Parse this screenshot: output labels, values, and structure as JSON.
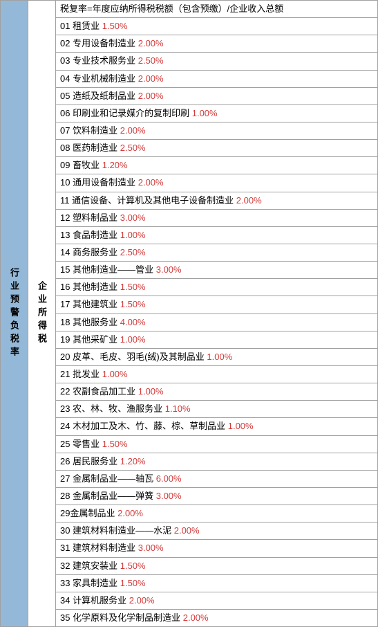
{
  "left_label": "行业预警负税率",
  "mid_label": "企业所得税",
  "header_row": "税复率=年度应纳所得税税额（包含预缴）/企业收入总额",
  "rows": [
    {
      "num": "01",
      "name": "租赁业",
      "rate": "1.50%"
    },
    {
      "num": "02",
      "name": "专用设备制造业",
      "rate": "2.00%"
    },
    {
      "num": "03",
      "name": "专业技术服务业",
      "rate": "2.50%"
    },
    {
      "num": "04",
      "name": "专业机械制造业",
      "rate": "2.00%"
    },
    {
      "num": "05",
      "name": "造纸及纸制品业",
      "rate": "2.00%"
    },
    {
      "num": "06",
      "name": "印刷业和记录媒介的复制印刷",
      "rate": "1.00%"
    },
    {
      "num": "07",
      "name": "饮料制造业",
      "rate": "2.00%"
    },
    {
      "num": "08",
      "name": "医药制造业",
      "rate": "2.50%"
    },
    {
      "num": "09",
      "name": "畜牧业",
      "rate": "1.20%"
    },
    {
      "num": "10",
      "name": "通用设备制造业",
      "rate": "2.00%"
    },
    {
      "num": "11",
      "name": "通信设备、计算机及其他电子设备制造业",
      "rate": "2.00%"
    },
    {
      "num": "12",
      "name": "塑料制品业",
      "rate": "3.00%"
    },
    {
      "num": "13",
      "name": "食品制造业",
      "rate": "1.00%"
    },
    {
      "num": "14",
      "name": "商务服务业",
      "rate": "2.50%"
    },
    {
      "num": "15",
      "name": "其他制造业——管业",
      "rate": "3.00%"
    },
    {
      "num": "16",
      "name": "其他制造业",
      "rate": "1.50%"
    },
    {
      "num": "17",
      "name": "其他建筑业",
      "rate": "1.50%"
    },
    {
      "num": "18",
      "name": "其他服务业",
      "rate": "4.00%"
    },
    {
      "num": "19",
      "name": "其他采矿业",
      "rate": "1.00%"
    },
    {
      "num": "20",
      "name": "皮革、毛皮、羽毛(绒)及其制品业",
      "rate": "1.00%"
    },
    {
      "num": "21",
      "name": "批发业",
      "rate": "1.00%"
    },
    {
      "num": "22",
      "name": "农副食品加工业",
      "rate": "1.00%"
    },
    {
      "num": "23",
      "name": "农、林、牧、渔服务业",
      "rate": "1.10%"
    },
    {
      "num": "24",
      "name": "木材加工及木、竹、藤、棕、草制品业",
      "rate": "1.00%"
    },
    {
      "num": "25",
      "name": "零售业",
      "rate": "1.50%"
    },
    {
      "num": "26",
      "name": "居民服务业",
      "rate": "1.20%"
    },
    {
      "num": "27",
      "name": "金属制品业——轴瓦",
      "rate": "6.00%"
    },
    {
      "num": "28",
      "name": "金属制品业——弹簧",
      "rate": "3.00%"
    },
    {
      "num": "29",
      "name": "金属制品业",
      "rate": "2.00%",
      "nospace": true
    },
    {
      "num": "30",
      "name": "建筑材料制造业——水泥",
      "rate": "2.00%"
    },
    {
      "num": "31",
      "name": "建筑材料制造业",
      "rate": "3.00%"
    },
    {
      "num": "32",
      "name": "建筑安装业",
      "rate": "1.50%"
    },
    {
      "num": "33",
      "name": "家具制造业",
      "rate": "1.50%"
    },
    {
      "num": "34",
      "name": "计算机服务业",
      "rate": "2.00%"
    },
    {
      "num": "35",
      "name": "化学原料及化学制品制造业",
      "rate": "2.00%"
    }
  ],
  "colors": {
    "left_bg": "#94b8d8",
    "border": "#a0a0a0",
    "rate": "#d43b3b",
    "text": "#000000"
  },
  "font_size": 13
}
